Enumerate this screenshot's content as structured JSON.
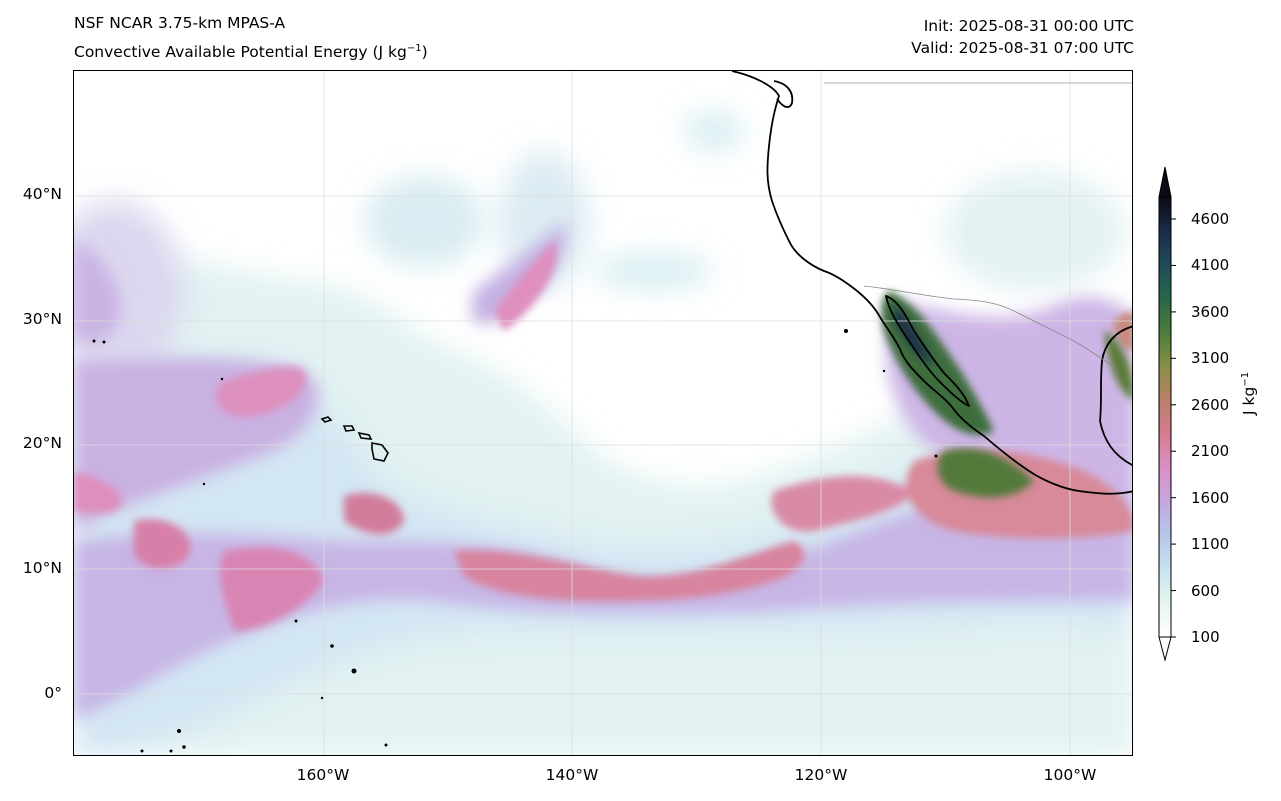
{
  "header": {
    "title_line1": "NSF NCAR 3.75-km MPAS-A",
    "title_line2_text": "Convective Available Potential Energy (J kg",
    "title_line2_sup": "−1",
    "title_line2_close": ")",
    "init": "Init: 2025-08-31 00:00 UTC",
    "valid": "Valid: 2025-08-31 07:00 UTC"
  },
  "axes": {
    "lat_labels": [
      "40°N",
      "30°N",
      "20°N",
      "10°N",
      "0°"
    ],
    "lon_labels": [
      "160°W",
      "140°W",
      "120°W",
      "100°W"
    ]
  },
  "colorbar": {
    "title_text": "J kg",
    "title_sup": "−1",
    "ticks": [
      "4600",
      "4100",
      "3600",
      "3100",
      "2600",
      "2100",
      "1600",
      "1100",
      "600",
      "100"
    ],
    "colors": [
      "#ffffff",
      "#e6f5f0",
      "#c7e3ef",
      "#b6c6ea",
      "#c6a6e0",
      "#d98fc6",
      "#d77b92",
      "#b9826a",
      "#8a8f45",
      "#4b7d3a",
      "#2a6648",
      "#1f4c5a",
      "#1b2b4a",
      "#0b0b14"
    ]
  }
}
